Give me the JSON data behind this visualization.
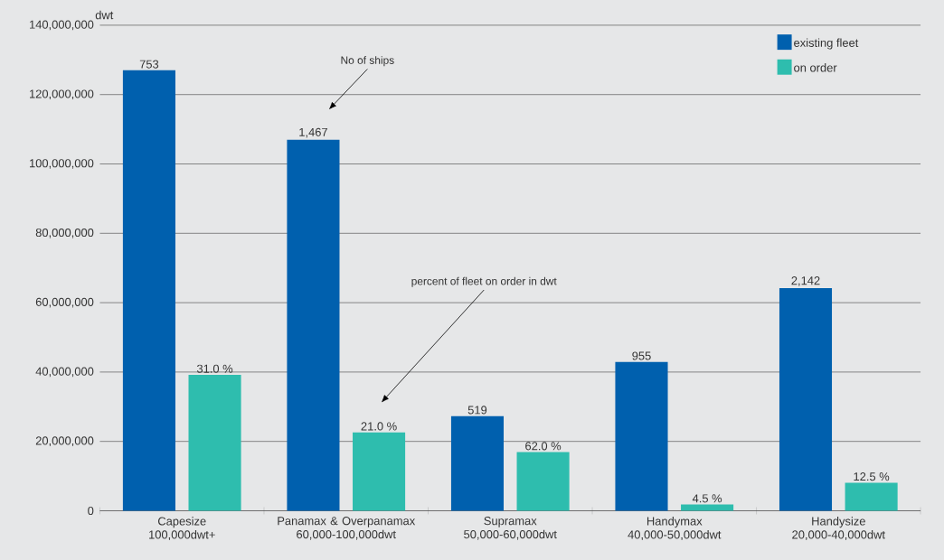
{
  "chart_data": {
    "type": "bar",
    "ylabel": "dwt",
    "categories": [
      "Capesize\n100,000dwt+",
      "Panamax & Overpanamax\n60,000-100,000dwt",
      "Supramax\n50,000-60,000dwt",
      "Handymax\n40,000-50,000dwt",
      "Handysize\n20,000-40,000dwt"
    ],
    "series": [
      {
        "name": "existing fleet",
        "color": "#0060ae",
        "values": [
          127000000,
          107000000,
          27300000,
          42900000,
          64200000
        ]
      },
      {
        "name": "on order",
        "color": "#2ebdae",
        "values": [
          39200000,
          22600000,
          16900000,
          1800000,
          8100000
        ]
      }
    ],
    "ylim": [
      0,
      140000000
    ],
    "yticks": [
      0,
      {
        "value": 20000000,
        "label": "20,000,000"
      },
      {
        "value": 40000000,
        "label": "40,000,000"
      },
      {
        "value": 60000000,
        "label": "60,000,000"
      },
      {
        "value": 80000000,
        "label": "80,000,000"
      },
      {
        "value": 100000000,
        "label": "100,000,000"
      },
      {
        "value": 120000000,
        "label": "120,000,000"
      },
      {
        "value": 140000000,
        "label": "140,000,000"
      }
    ],
    "annotations": [
      "No of ships",
      "percent of fleet on order in dwt",
      "753",
      "1,467",
      "519",
      "955",
      "2,142",
      "31.0 %",
      "21.0 %",
      "62.0 %",
      "4.5 %",
      "12.5 %"
    ],
    "grid": "y",
    "legend": "top right"
  }
}
